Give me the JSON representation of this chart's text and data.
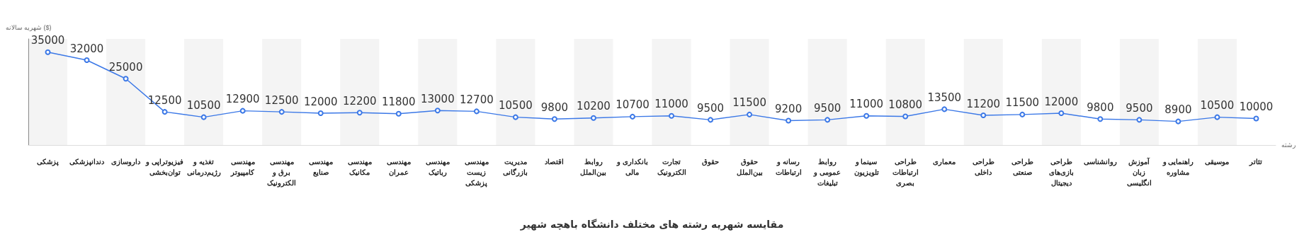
{
  "chart_data": {
    "type": "line",
    "title": "مقایسه شهریه رشته های مختلف دانشگاه باهچه شهیر",
    "ylabel": "شهریه سالانه ($)",
    "xlabel": "رشته",
    "categories": [
      "پزشکی",
      "دندانپزشکی",
      "داروسازی",
      "فیزیوتراپی و توان‌بخشی",
      "تغذیه و رژیم‌درمانی",
      "مهندسی کامپیوتر",
      "مهندسی برق و الکترونیک",
      "مهندسی صنایع",
      "مهندسی مکانیک",
      "مهندسی عمران",
      "مهندسی رباتیک",
      "مهندسی زیست پزشکی",
      "مدیریت بازرگانی",
      "اقتصاد",
      "روابط بین‌الملل",
      "بانکداری و مالی",
      "تجارت الکترونیک",
      "حقوق",
      "حقوق بین‌الملل",
      "رسانه و ارتباطات",
      "روابط عمومی و تبلیغات",
      "سینما و تلویزیون",
      "طراحی ارتباطات بصری",
      "معماری",
      "طراحی داخلی",
      "طراحی صنعتی",
      "طراحی بازی‌های دیجیتال",
      "روانشناسی",
      "آموزش زبان انگلیسی",
      "راهنمایی و مشاوره",
      "موسیقی",
      "تئاتر"
    ],
    "series": [
      {
        "color": "#3b78e7",
        "values": [
          35000,
          32000,
          25000,
          12500,
          10500,
          12900,
          12500,
          12000,
          12200,
          11800,
          13000,
          12700,
          10500,
          9800,
          10200,
          10700,
          11000,
          9500,
          11500,
          9200,
          9500,
          11000,
          10800,
          13500,
          11200,
          11500,
          12000,
          9800,
          9500,
          8900,
          10500,
          10000
        ]
      }
    ],
    "data_labels": true,
    "marker": "circle",
    "grid": false
  }
}
